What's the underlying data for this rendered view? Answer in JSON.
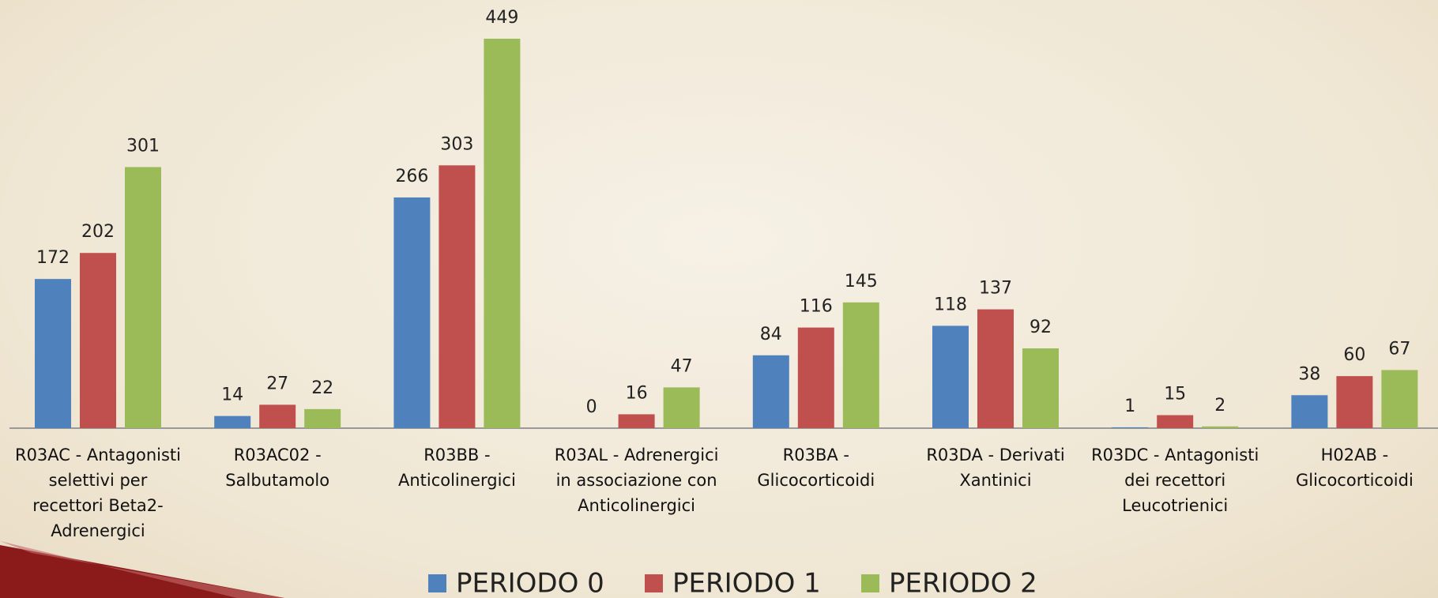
{
  "chart_data": {
    "type": "bar",
    "categories": [
      "R03AC - Antagonisti selettivi per recettori Beta2-Adrenergici",
      "R03AC02 - Salbutamolo",
      "R03BB - Anticolinergici",
      "R03AL - Adrenergici in associazione con Anticolinergici",
      "R03BA - Glicocorticoidi",
      "R03DA - Derivati Xantinici",
      "R03DC - Antagonisti dei recettori Leucotrienici",
      "H02AB - Glicocorticoidi"
    ],
    "series": [
      {
        "name": "PERIODO 0",
        "color": "#4f81bd",
        "values": [
          172,
          14,
          266,
          0,
          84,
          118,
          1,
          38
        ]
      },
      {
        "name": "PERIODO 1",
        "color": "#c0504d",
        "values": [
          202,
          27,
          303,
          16,
          116,
          137,
          15,
          60
        ]
      },
      {
        "name": "PERIODO 2",
        "color": "#9bbb59",
        "values": [
          301,
          22,
          449,
          47,
          145,
          92,
          2,
          67
        ]
      }
    ],
    "legend": "bottom"
  }
}
